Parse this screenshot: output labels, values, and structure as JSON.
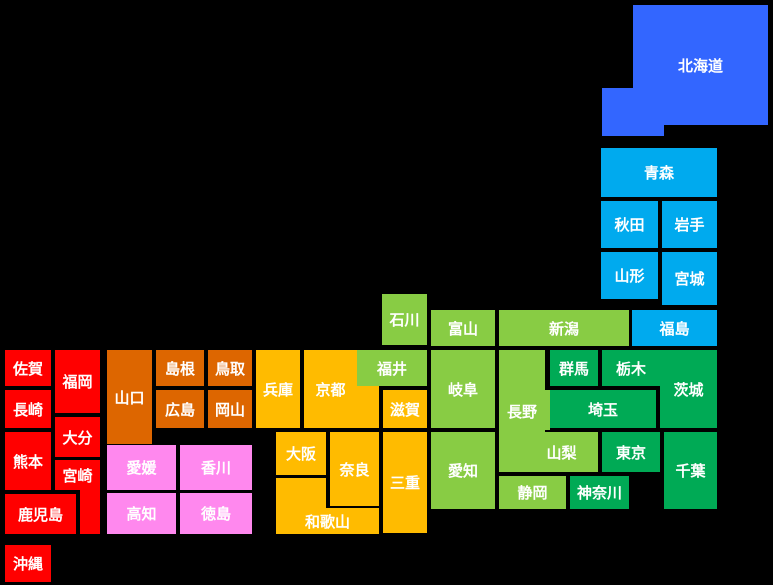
{
  "colors": {
    "background": "#000000",
    "hokkaido": "#3366ff",
    "tohoku": "#00aaee",
    "kanto": "#00aa55",
    "chubu": "#88cc44",
    "kinki": "#ffbb00",
    "chugoku": "#dd6600",
    "shikoku": "#ff88ee",
    "kyushu": "#ff0000"
  },
  "prefectures": {
    "hokkaido": "北海道",
    "aomori": "青森",
    "akita": "秋田",
    "iwate": "岩手",
    "yamagata": "山形",
    "miyagi": "宮城",
    "fukushima": "福島",
    "ishikawa": "石川",
    "toyama": "富山",
    "niigata": "新潟",
    "fukui": "福井",
    "gifu": "岐阜",
    "nagano": "長野",
    "gunma": "群馬",
    "tochigi": "栃木",
    "ibaraki": "茨城",
    "saitama": "埼玉",
    "yamanashi": "山梨",
    "tokyo": "東京",
    "chiba": "千葉",
    "aichi": "愛知",
    "shizuoka": "静岡",
    "kanagawa": "神奈川",
    "hyogo": "兵庫",
    "kyoto": "京都",
    "shiga": "滋賀",
    "osaka": "大阪",
    "nara": "奈良",
    "mie": "三重",
    "wakayama": "和歌山",
    "yamaguchi": "山口",
    "shimane": "島根",
    "tottori": "鳥取",
    "hiroshima": "広島",
    "okayama": "岡山",
    "ehime": "愛媛",
    "kagawa": "香川",
    "kochi": "高知",
    "tokushima": "徳島",
    "saga": "佐賀",
    "fukuoka": "福岡",
    "nagasaki": "長崎",
    "oita": "大分",
    "kumamoto": "熊本",
    "miyazaki": "宮崎",
    "kagoshima": "鹿児島",
    "okinawa": "沖縄"
  }
}
